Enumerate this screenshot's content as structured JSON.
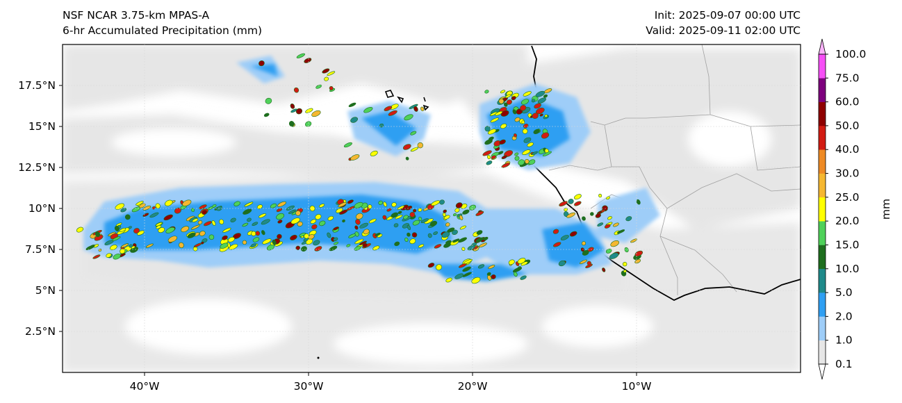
{
  "header": {
    "model_title": "NSF NCAR 3.75-km MPAS-A",
    "field_title": "6-hr Accumulated Precipitation (mm)",
    "init": "Init: 2025-09-07 00:00 UTC",
    "valid": "Valid: 2025-09-11 02:00 UTC"
  },
  "map": {
    "lon_range": [
      -45,
      0
    ],
    "lat_range": [
      0,
      20
    ],
    "lon_ticks": [
      {
        "value": -40,
        "label": "40°W"
      },
      {
        "value": -30,
        "label": "30°W"
      },
      {
        "value": -20,
        "label": "20°W"
      },
      {
        "value": -10,
        "label": "10°W"
      }
    ],
    "lat_ticks": [
      {
        "value": 2.5,
        "label": "2.5°N"
      },
      {
        "value": 5,
        "label": "5°N"
      },
      {
        "value": 7.5,
        "label": "7.5°N"
      },
      {
        "value": 10,
        "label": "10°N"
      },
      {
        "value": 12.5,
        "label": "12.5°N"
      },
      {
        "value": 15,
        "label": "15°N"
      },
      {
        "value": 17.5,
        "label": "17.5°N"
      }
    ]
  },
  "colorbar": {
    "label": "mm",
    "levels": [
      "0.1",
      "1.0",
      "2.0",
      "5.0",
      "10.0",
      "15.0",
      "20.0",
      "25.0",
      "30.0",
      "40.0",
      "50.0",
      "60.0",
      "75.0",
      "100.0"
    ],
    "colors": [
      "#e6e6e6",
      "#9ecdf8",
      "#2f9ff2",
      "#1f8a8a",
      "#1e6e1e",
      "#4fd15a",
      "#ffff00",
      "#f5b731",
      "#ee8a25",
      "#d21b12",
      "#8e0000",
      "#7d007d",
      "#f64ff6"
    ],
    "extend_low_color": "#ffffff",
    "extend_high_color": "#f9b2f9"
  }
}
